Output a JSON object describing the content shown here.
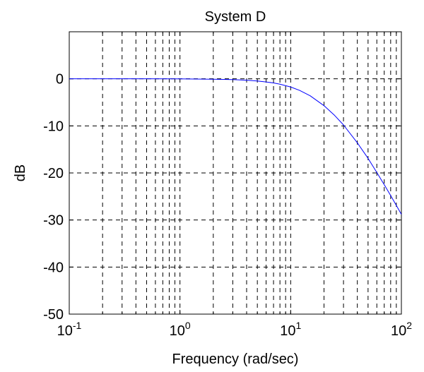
{
  "chart_data": {
    "type": "line",
    "title": "System D",
    "xlabel": "Frequency (rad/sec)",
    "ylabel": "dB",
    "x_scale": "log",
    "xlim": [
      0.1,
      100
    ],
    "ylim": [
      -50,
      10
    ],
    "grid": true,
    "grid_style": "dashed",
    "x_ticks": [
      {
        "base": "10",
        "exp": "-1",
        "value": 0.1
      },
      {
        "base": "10",
        "exp": "0",
        "value": 1
      },
      {
        "base": "10",
        "exp": "1",
        "value": 10
      },
      {
        "base": "10",
        "exp": "2",
        "value": 100
      }
    ],
    "y_ticks": [
      {
        "label": "0",
        "value": 0
      },
      {
        "label": "-10",
        "value": -10
      },
      {
        "label": "-20",
        "value": -20
      },
      {
        "label": "-30",
        "value": -30
      },
      {
        "label": "-40",
        "value": -40
      },
      {
        "label": "-50",
        "value": -50
      }
    ],
    "series": [
      {
        "color": "#0000ff",
        "x": [
          0.1,
          0.2,
          0.5,
          1,
          2,
          3,
          4,
          5,
          6,
          7,
          8,
          10,
          12,
          15,
          20,
          25,
          30,
          40,
          50,
          60,
          70,
          80,
          90,
          100
        ],
        "y": [
          0.0,
          0.0,
          0.0,
          -0.02,
          -0.08,
          -0.17,
          -0.3,
          -0.46,
          -0.66,
          -0.88,
          -1.14,
          -1.74,
          -2.44,
          -3.6,
          -5.7,
          -7.8,
          -9.8,
          -13.6,
          -16.9,
          -19.9,
          -22.5,
          -24.8,
          -26.9,
          -28.8
        ]
      }
    ]
  }
}
